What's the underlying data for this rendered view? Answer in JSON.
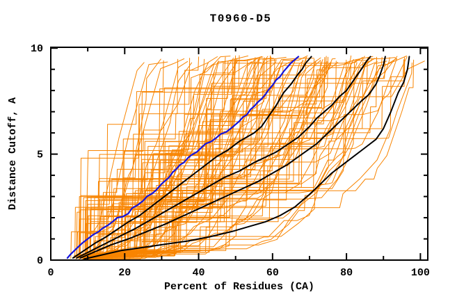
{
  "chart_data": {
    "type": "line",
    "title": "T0960-D5",
    "x_axis": {
      "label": "Percent of Residues (CA)",
      "range": [
        0,
        102
      ],
      "major_ticks": [
        0,
        20,
        40,
        60,
        80,
        100
      ],
      "minor_step": 10
    },
    "y_axis": {
      "label": "Distance Cutoff, A",
      "range": [
        0,
        10
      ],
      "major_ticks": [
        0,
        5,
        10
      ],
      "minor_step": 1
    },
    "frame_color": "#000000",
    "background": "#ffffff",
    "series": [
      {
        "name": "highlight-model-blue",
        "color": "#1515dd",
        "width": 2.2,
        "points": [
          [
            4.5,
            0.1
          ],
          [
            5.5,
            0.3
          ],
          [
            7,
            0.55
          ],
          [
            8.5,
            0.8
          ],
          [
            10,
            1.0
          ],
          [
            11.5,
            1.2
          ],
          [
            13,
            1.35
          ],
          [
            14,
            1.5
          ],
          [
            15.5,
            1.65
          ],
          [
            17,
            1.85
          ],
          [
            18,
            2.0
          ],
          [
            19.5,
            2.05
          ],
          [
            21,
            2.2
          ],
          [
            22,
            2.45
          ],
          [
            23.5,
            2.6
          ],
          [
            25,
            2.8
          ],
          [
            26,
            3.0
          ],
          [
            27.5,
            3.15
          ],
          [
            28.5,
            3.3
          ],
          [
            30,
            3.6
          ],
          [
            31,
            3.75
          ],
          [
            32,
            3.9
          ],
          [
            33,
            4.15
          ],
          [
            34,
            4.3
          ],
          [
            35,
            4.5
          ],
          [
            36,
            4.6
          ],
          [
            37,
            4.8
          ],
          [
            38,
            4.95
          ],
          [
            39.5,
            5.1
          ],
          [
            41,
            5.35
          ],
          [
            42,
            5.5
          ],
          [
            43.5,
            5.6
          ],
          [
            45,
            5.8
          ],
          [
            46,
            5.95
          ],
          [
            47.5,
            6.05
          ],
          [
            49,
            6.25
          ],
          [
            50,
            6.4
          ],
          [
            51,
            6.55
          ],
          [
            52,
            6.75
          ],
          [
            53,
            6.85
          ],
          [
            54,
            7.1
          ],
          [
            55,
            7.25
          ],
          [
            56,
            7.45
          ],
          [
            57,
            7.6
          ],
          [
            58,
            7.8
          ],
          [
            59,
            8.05
          ],
          [
            60,
            8.25
          ],
          [
            61,
            8.5
          ],
          [
            62,
            8.65
          ],
          [
            63,
            8.9
          ],
          [
            64,
            9.1
          ],
          [
            65,
            9.3
          ],
          [
            66,
            9.45
          ],
          [
            67,
            9.6
          ]
        ]
      },
      {
        "name": "highlight-model-black-1",
        "color": "#000000",
        "width": 2,
        "points": [
          [
            6,
            0.1
          ],
          [
            9,
            0.45
          ],
          [
            12,
            0.8
          ],
          [
            15,
            1.1
          ],
          [
            18,
            1.45
          ],
          [
            21,
            1.8
          ],
          [
            24,
            2.1
          ],
          [
            27,
            2.5
          ],
          [
            30,
            2.9
          ],
          [
            33,
            3.3
          ],
          [
            36,
            3.7
          ],
          [
            39,
            4.1
          ],
          [
            42,
            4.5
          ],
          [
            45,
            4.9
          ],
          [
            48,
            5.2
          ],
          [
            51,
            5.6
          ],
          [
            53,
            5.8
          ],
          [
            55,
            6.0
          ],
          [
            57,
            6.3
          ],
          [
            59,
            6.8
          ],
          [
            61,
            7.3
          ],
          [
            63,
            7.9
          ],
          [
            65,
            8.3
          ],
          [
            67,
            8.8
          ],
          [
            68,
            9.0
          ],
          [
            69,
            9.3
          ],
          [
            70,
            9.5
          ],
          [
            70.5,
            9.6
          ]
        ]
      },
      {
        "name": "highlight-model-black-2",
        "color": "#000000",
        "width": 2,
        "points": [
          [
            7,
            0.1
          ],
          [
            11,
            0.45
          ],
          [
            15,
            0.8
          ],
          [
            19,
            1.15
          ],
          [
            23,
            1.5
          ],
          [
            27,
            1.9
          ],
          [
            31,
            2.3
          ],
          [
            35,
            2.7
          ],
          [
            39,
            3.1
          ],
          [
            43,
            3.5
          ],
          [
            47,
            3.9
          ],
          [
            51,
            4.2
          ],
          [
            55,
            4.6
          ],
          [
            58,
            4.85
          ],
          [
            61,
            5.1
          ],
          [
            64,
            5.45
          ],
          [
            67,
            5.8
          ],
          [
            70,
            6.3
          ],
          [
            72,
            6.7
          ],
          [
            74,
            7.0
          ],
          [
            76,
            7.3
          ],
          [
            78,
            7.7
          ],
          [
            80,
            8.0
          ],
          [
            82,
            8.5
          ],
          [
            84,
            9.0
          ],
          [
            85.5,
            9.4
          ],
          [
            86.5,
            9.6
          ]
        ]
      },
      {
        "name": "highlight-model-black-3",
        "color": "#000000",
        "width": 2,
        "points": [
          [
            8,
            0.1
          ],
          [
            12,
            0.4
          ],
          [
            16,
            0.7
          ],
          [
            21,
            1.0
          ],
          [
            26,
            1.35
          ],
          [
            31,
            1.7
          ],
          [
            36,
            2.1
          ],
          [
            41,
            2.5
          ],
          [
            46,
            2.9
          ],
          [
            51,
            3.3
          ],
          [
            56,
            3.7
          ],
          [
            60,
            4.1
          ],
          [
            64,
            4.5
          ],
          [
            68,
            5.0
          ],
          [
            72,
            5.5
          ],
          [
            75,
            6.0
          ],
          [
            78,
            6.5
          ],
          [
            81,
            7.0
          ],
          [
            84,
            7.5
          ],
          [
            86,
            7.8
          ],
          [
            88,
            8.3
          ],
          [
            89,
            8.7
          ],
          [
            90,
            9.2
          ],
          [
            90.5,
            9.6
          ]
        ]
      },
      {
        "name": "highlight-model-black-4",
        "color": "#000000",
        "width": 2,
        "points": [
          [
            9,
            0.05
          ],
          [
            14,
            0.25
          ],
          [
            19,
            0.45
          ],
          [
            25,
            0.6
          ],
          [
            31,
            0.75
          ],
          [
            37,
            0.9
          ],
          [
            43,
            1.1
          ],
          [
            49,
            1.35
          ],
          [
            54,
            1.6
          ],
          [
            58,
            1.8
          ],
          [
            62,
            2.1
          ],
          [
            66,
            2.5
          ],
          [
            70,
            3.1
          ],
          [
            73,
            3.6
          ],
          [
            76,
            4.1
          ],
          [
            79,
            4.5
          ],
          [
            82,
            4.9
          ],
          [
            85,
            5.3
          ],
          [
            88,
            5.7
          ],
          [
            90,
            6.2
          ],
          [
            92,
            7.0
          ],
          [
            94,
            7.9
          ],
          [
            95.5,
            8.4
          ],
          [
            96.5,
            9.0
          ],
          [
            97,
            9.6
          ]
        ]
      }
    ],
    "ensemble": {
      "name": "other-prediction-models",
      "color": "#f88400",
      "width": 1,
      "count": 108,
      "seed": 1337,
      "start_x_range": [
        4,
        13
      ],
      "top_x_range": [
        17,
        100.5
      ],
      "top_y": 9.6
    }
  }
}
